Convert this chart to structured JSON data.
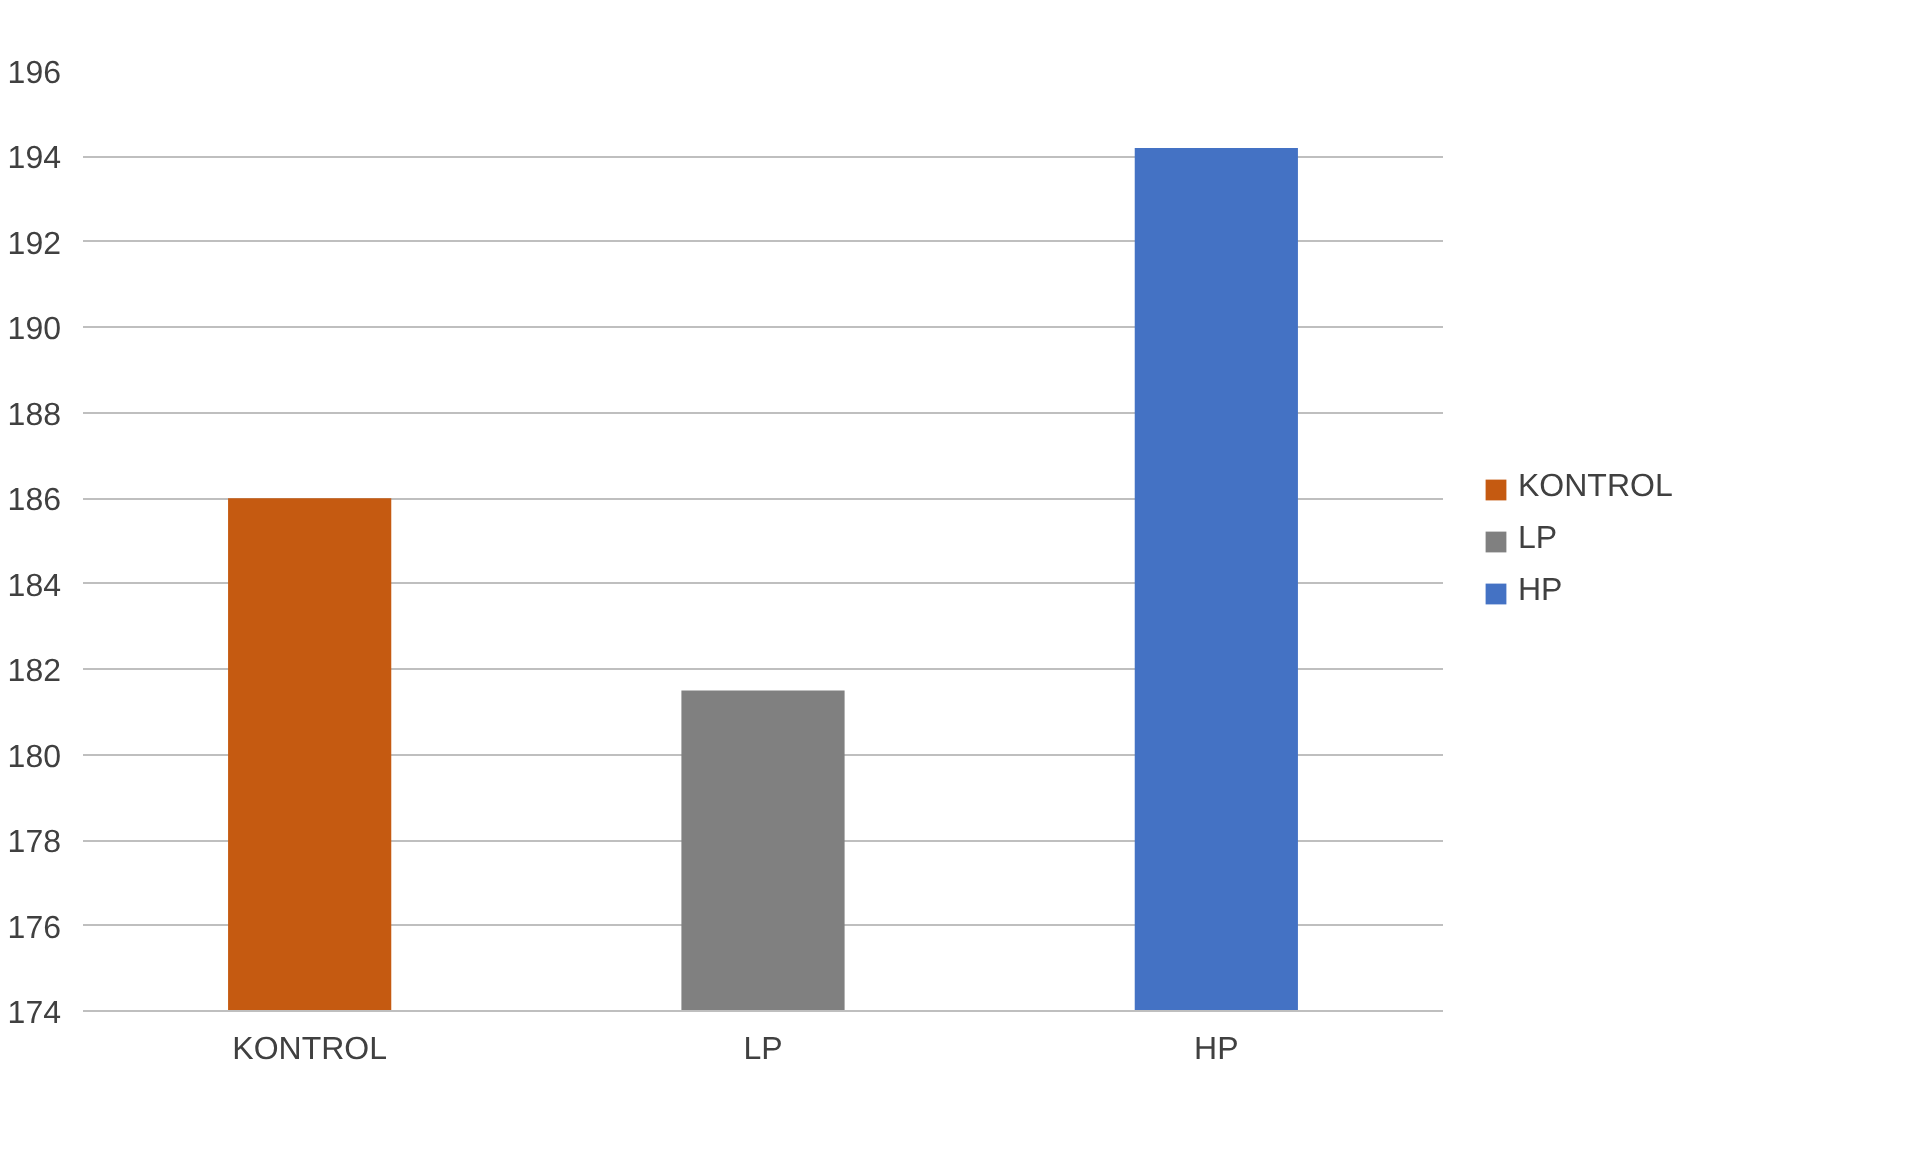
{
  "chart_data": {
    "type": "bar",
    "categories": [
      "KONTROL",
      "LP",
      "HP"
    ],
    "series": [
      {
        "name": "KONTROL",
        "color": "#c55a11",
        "values": [
          186.0,
          null,
          null
        ]
      },
      {
        "name": "LP",
        "color": "#808080",
        "values": [
          null,
          181.5,
          null
        ]
      },
      {
        "name": "HP",
        "color": "#4472c4",
        "values": [
          null,
          null,
          194.2
        ]
      }
    ],
    "ylim": [
      174,
      196
    ],
    "yticks": [
      174,
      176,
      178,
      180,
      182,
      184,
      186,
      188,
      190,
      192,
      194,
      196
    ],
    "grid": "y",
    "legend": "right"
  }
}
